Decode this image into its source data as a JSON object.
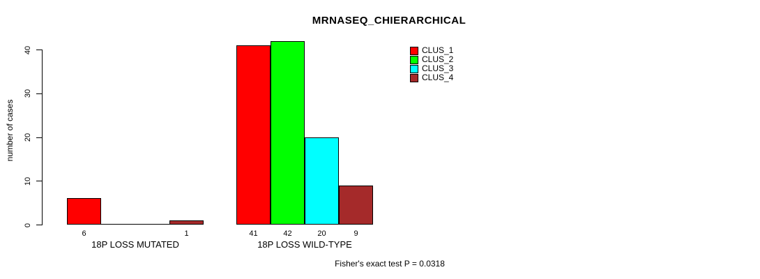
{
  "chart_data": {
    "type": "bar",
    "title": "MRNASEQ_CHIERARCHICAL",
    "ylabel": "number of cases",
    "xlabel": "",
    "footnote": "Fisher's exact test P = 0.0318",
    "ylim": [
      0,
      40
    ],
    "yticks": [
      0,
      10,
      20,
      30,
      40
    ],
    "grid": false,
    "legend_position": "top-right",
    "bar_value_labels_visible": true,
    "categories": [
      "18P LOSS MUTATED",
      "18P LOSS WILD-TYPE"
    ],
    "series": [
      {
        "name": "CLUS_1",
        "color": "#FF0000",
        "values": [
          6,
          41
        ]
      },
      {
        "name": "CLUS_2",
        "color": "#00FF00",
        "values": [
          0,
          42
        ]
      },
      {
        "name": "CLUS_3",
        "color": "#00FFFF",
        "values": [
          0,
          20
        ]
      },
      {
        "name": "CLUS_4",
        "color": "#A52A2A",
        "values": [
          1,
          9
        ]
      }
    ]
  }
}
